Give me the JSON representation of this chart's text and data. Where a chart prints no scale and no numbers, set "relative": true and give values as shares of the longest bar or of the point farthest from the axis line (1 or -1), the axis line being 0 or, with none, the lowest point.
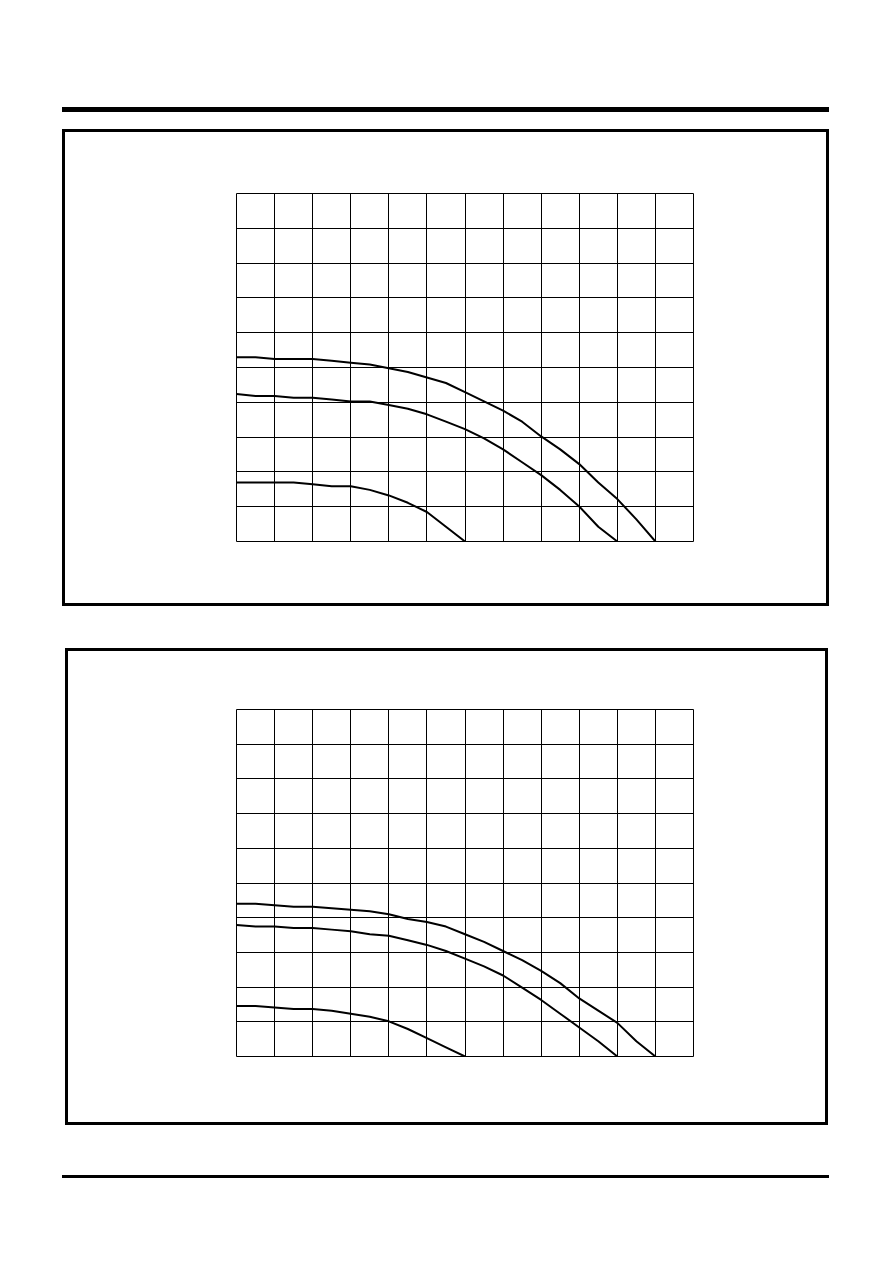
{
  "chart_data": [
    {
      "type": "line",
      "relative": true,
      "grid": true,
      "tick_labels": false,
      "line_style": "solid",
      "categories": [
        null,
        null,
        null,
        null,
        null,
        null,
        null,
        null,
        null,
        null,
        null,
        null,
        null,
        null,
        null,
        null,
        null,
        null,
        null,
        null,
        null,
        null,
        null,
        null,
        null
      ],
      "series": [
        {
          "color": "#000000",
          "values": [
            1.0,
            1.0,
            0.99,
            0.99,
            0.99,
            0.98,
            0.97,
            0.96,
            0.94,
            0.92,
            0.89,
            0.86,
            0.81,
            0.76,
            0.71,
            0.65,
            0.57,
            0.5,
            0.42,
            0.32,
            0.23,
            0.12,
            0,
            null,
            null
          ]
        },
        {
          "color": "#000000",
          "values": [
            0.8,
            0.79,
            0.79,
            0.78,
            0.78,
            0.77,
            0.76,
            0.76,
            0.74,
            0.72,
            0.69,
            0.65,
            0.61,
            0.56,
            0.5,
            0.43,
            0.36,
            0.28,
            0.19,
            0.08,
            0,
            null,
            null,
            null,
            null
          ]
        },
        {
          "color": "#000000",
          "values": [
            0.32,
            0.32,
            0.32,
            0.32,
            0.31,
            0.3,
            0.3,
            0.28,
            0.25,
            0.21,
            0.16,
            0.08,
            0,
            null,
            null,
            null,
            null,
            null,
            null,
            null,
            null,
            null,
            null,
            null,
            null
          ]
        }
      ]
    },
    {
      "type": "line",
      "relative": true,
      "grid": true,
      "tick_labels": false,
      "line_style": "solid",
      "categories": [
        null,
        null,
        null,
        null,
        null,
        null,
        null,
        null,
        null,
        null,
        null,
        null,
        null,
        null,
        null,
        null,
        null,
        null,
        null,
        null,
        null,
        null,
        null,
        null,
        null
      ],
      "series": [
        {
          "color": "#000000",
          "values": [
            1.0,
            1.0,
            0.99,
            0.98,
            0.98,
            0.97,
            0.96,
            0.95,
            0.93,
            0.9,
            0.88,
            0.85,
            0.8,
            0.75,
            0.69,
            0.63,
            0.56,
            0.48,
            0.38,
            0.3,
            0.22,
            0.1,
            0,
            null,
            null
          ]
        },
        {
          "color": "#000000",
          "values": [
            0.86,
            0.85,
            0.85,
            0.84,
            0.84,
            0.83,
            0.82,
            0.8,
            0.79,
            0.76,
            0.73,
            0.69,
            0.64,
            0.59,
            0.53,
            0.45,
            0.37,
            0.28,
            0.19,
            0.1,
            0,
            null,
            null,
            null,
            null
          ]
        },
        {
          "color": "#000000",
          "values": [
            0.33,
            0.33,
            0.32,
            0.31,
            0.31,
            0.3,
            0.28,
            0.26,
            0.23,
            0.18,
            0.12,
            0.06,
            0,
            null,
            null,
            null,
            null,
            null,
            null,
            null,
            null,
            null,
            null,
            null,
            null
          ]
        }
      ]
    }
  ]
}
